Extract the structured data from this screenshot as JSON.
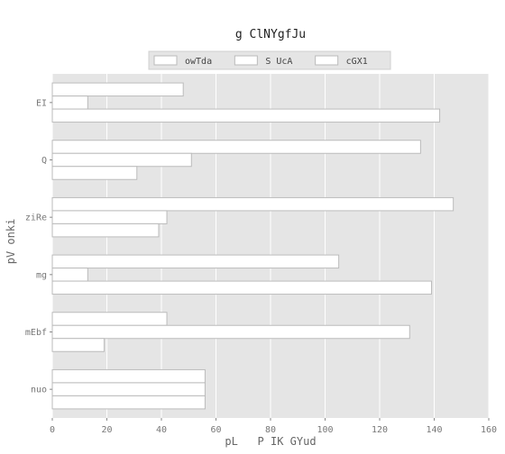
{
  "chart_data": {
    "type": "bar",
    "orientation": "horizontal",
    "title": "g ClNYgfJu",
    "xlabel": "pL   P IK GYud",
    "ylabel": "pV onki",
    "xlim": [
      0,
      160
    ],
    "xticks": [
      0,
      20,
      40,
      60,
      80,
      100,
      120,
      140,
      160
    ],
    "grid": true,
    "legend_position": "top-center",
    "categories": [
      "EI",
      "Q",
      "ziRe",
      "mg",
      "mEbf",
      "nuo"
    ],
    "series": [
      {
        "name": "owTda",
        "values": [
          48,
          135,
          147,
          105,
          42,
          56
        ]
      },
      {
        "name": "S UcA",
        "values": [
          13,
          51,
          42,
          13,
          131,
          56
        ]
      },
      {
        "name": "cGX1",
        "values": [
          142,
          31,
          39,
          139,
          19,
          56
        ]
      }
    ],
    "colors": {
      "plot_background": "#e5e5e5",
      "bar_fill": "#ffffff",
      "bar_stroke": "#bbbbbb",
      "grid": "#ffffff"
    }
  }
}
